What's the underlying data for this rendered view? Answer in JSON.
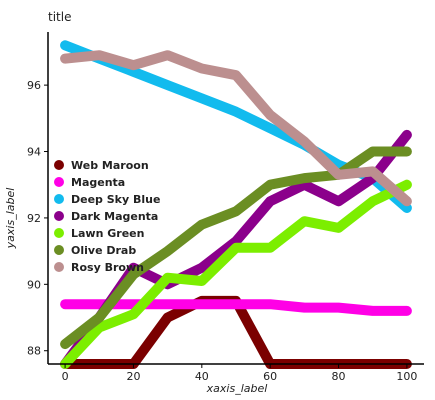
{
  "chart_data": {
    "type": "line",
    "title": "title",
    "xlabel": "xaxis_label",
    "ylabel": "yaxis_label",
    "xlim": [
      -5,
      105
    ],
    "ylim": [
      87.6,
      97.6
    ],
    "xticks": [
      0,
      20,
      40,
      60,
      80,
      100
    ],
    "yticks": [
      88,
      90,
      92,
      94,
      96
    ],
    "grid": false,
    "legend_position": "left",
    "series": [
      {
        "name": "Web Maroon",
        "color": "#7b0000",
        "x": [
          0,
          10,
          20,
          30,
          40,
          50,
          60,
          70,
          80,
          90,
          100
        ],
        "y": [
          87.6,
          87.6,
          87.6,
          89.0,
          89.5,
          89.5,
          87.6,
          87.6,
          87.6,
          87.6,
          87.6
        ]
      },
      {
        "name": "Magenta",
        "color": "#ff00e6",
        "x": [
          0,
          10,
          20,
          30,
          40,
          50,
          60,
          70,
          80,
          90,
          100
        ],
        "y": [
          89.4,
          89.4,
          89.4,
          89.4,
          89.4,
          89.4,
          89.4,
          89.3,
          89.3,
          89.2,
          89.2
        ]
      },
      {
        "name": "Deep Sky Blue",
        "color": "#12bbee",
        "x": [
          0,
          10,
          20,
          30,
          40,
          50,
          60,
          70,
          80,
          90,
          100
        ],
        "y": [
          97.2,
          96.8,
          96.4,
          96.0,
          95.6,
          95.2,
          94.7,
          94.2,
          93.6,
          93.2,
          92.3
        ]
      },
      {
        "name": "Dark Magenta",
        "color": "#8b008b",
        "x": [
          0,
          10,
          20,
          30,
          40,
          50,
          60,
          70,
          80,
          90,
          100
        ],
        "y": [
          87.6,
          89.0,
          90.5,
          90.0,
          90.5,
          91.3,
          92.5,
          93.0,
          92.5,
          93.2,
          94.5
        ]
      },
      {
        "name": "Lawn Green",
        "color": "#7cee00",
        "x": [
          0,
          10,
          20,
          30,
          40,
          50,
          60,
          70,
          80,
          90,
          100
        ],
        "y": [
          87.6,
          88.7,
          89.1,
          90.2,
          90.1,
          91.1,
          91.1,
          91.9,
          91.7,
          92.5,
          93.0
        ]
      },
      {
        "name": "Olive Drab",
        "color": "#6b8e23",
        "x": [
          0,
          10,
          20,
          30,
          40,
          50,
          60,
          70,
          80,
          90,
          100
        ],
        "y": [
          88.2,
          89.0,
          90.3,
          91.0,
          91.8,
          92.2,
          93.0,
          93.2,
          93.3,
          94.0,
          94.0
        ]
      },
      {
        "name": "Rosy Brown",
        "color": "#bc8f8f",
        "x": [
          0,
          10,
          20,
          30,
          40,
          50,
          60,
          70,
          80,
          90,
          100
        ],
        "y": [
          96.8,
          96.9,
          96.6,
          96.9,
          96.5,
          96.3,
          95.1,
          94.3,
          93.3,
          93.4,
          92.5
        ]
      }
    ]
  }
}
